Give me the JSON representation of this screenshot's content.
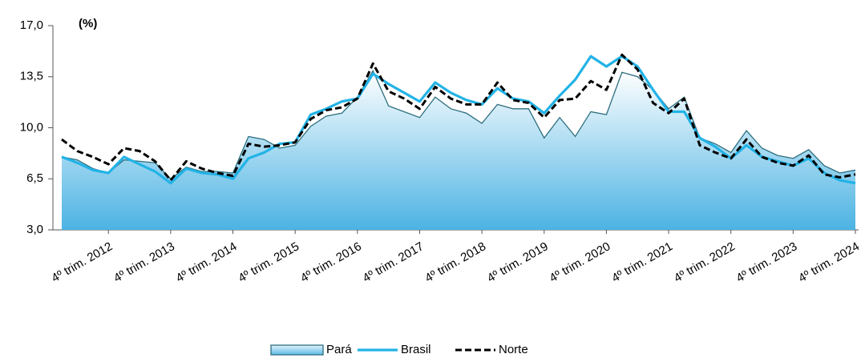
{
  "chart_data": {
    "type": "line",
    "annotation": "(%)",
    "categories": [
      null,
      null,
      null,
      "4º trim. 2012",
      null,
      null,
      null,
      "4º trim. 2013",
      null,
      null,
      null,
      "4º trim. 2014",
      null,
      null,
      null,
      "4º trim. 2015",
      null,
      null,
      null,
      "4º trim. 2016",
      null,
      null,
      null,
      "4º trim. 2017",
      null,
      null,
      null,
      "4º trim. 2018",
      null,
      null,
      null,
      "4º trim. 2019",
      null,
      null,
      null,
      "4º trim. 2020",
      null,
      null,
      null,
      "4º trim. 2021",
      null,
      null,
      null,
      "4º trim. 2022",
      null,
      null,
      null,
      "4º trim. 2023",
      null,
      null,
      null,
      "4º trim. 2024"
    ],
    "series": [
      {
        "name": "Pará",
        "style": "area",
        "color": "#2d6e7e",
        "values": [
          8.0,
          7.8,
          7.2,
          6.9,
          7.8,
          7.7,
          7.6,
          6.5,
          7.3,
          7.0,
          7.0,
          6.9,
          9.4,
          9.2,
          8.6,
          8.8,
          10.1,
          10.8,
          11.0,
          12.1,
          13.9,
          11.5,
          11.1,
          10.7,
          12.1,
          11.3,
          11.0,
          10.3,
          11.6,
          11.3,
          11.3,
          9.3,
          10.7,
          9.4,
          11.1,
          10.9,
          13.8,
          13.5,
          12.6,
          11.3,
          12.1,
          9.3,
          8.9,
          8.3,
          9.8,
          8.6,
          8.1,
          7.9,
          8.5,
          7.4,
          6.9,
          7.1
        ]
      },
      {
        "name": "Brasil",
        "style": "solid",
        "color": "#22b3e6",
        "values": [
          8.0,
          7.6,
          7.1,
          6.9,
          8.0,
          7.5,
          7.0,
          6.2,
          7.2,
          6.9,
          6.8,
          6.5,
          7.9,
          8.3,
          8.9,
          9.0,
          10.9,
          11.3,
          11.8,
          12.0,
          13.7,
          13.0,
          12.4,
          11.8,
          13.1,
          12.4,
          11.9,
          11.6,
          12.7,
          12.0,
          11.8,
          11.0,
          12.2,
          13.3,
          14.9,
          14.2,
          14.9,
          14.2,
          12.6,
          11.1,
          11.1,
          9.3,
          8.7,
          7.9,
          8.8,
          8.0,
          7.7,
          7.4,
          7.9,
          6.9,
          6.4,
          6.2
        ]
      },
      {
        "name": "Norte",
        "style": "dashed",
        "color": "#000000",
        "values": [
          9.2,
          8.4,
          8.0,
          7.5,
          8.6,
          8.4,
          7.7,
          6.4,
          7.7,
          7.2,
          6.9,
          6.7,
          8.9,
          8.7,
          8.8,
          9.0,
          10.6,
          11.2,
          11.4,
          12.0,
          14.4,
          12.5,
          12.0,
          11.3,
          12.8,
          12.0,
          11.6,
          11.6,
          13.1,
          11.9,
          11.7,
          10.7,
          11.9,
          12.0,
          13.2,
          12.6,
          15.0,
          14.0,
          11.7,
          11.0,
          12.0,
          8.8,
          8.3,
          7.9,
          9.2,
          8.0,
          7.6,
          7.4,
          8.1,
          6.8,
          6.6,
          6.8
        ]
      }
    ],
    "ylim": [
      3,
      17
    ],
    "yticks": [
      {
        "value": 3,
        "label": "3,0"
      },
      {
        "value": 6.5,
        "label": "6,5"
      },
      {
        "value": 10,
        "label": "10,0"
      },
      {
        "value": 13.5,
        "label": "13,5"
      },
      {
        "value": 17,
        "label": "17,0"
      }
    ],
    "legend": "bottom"
  }
}
